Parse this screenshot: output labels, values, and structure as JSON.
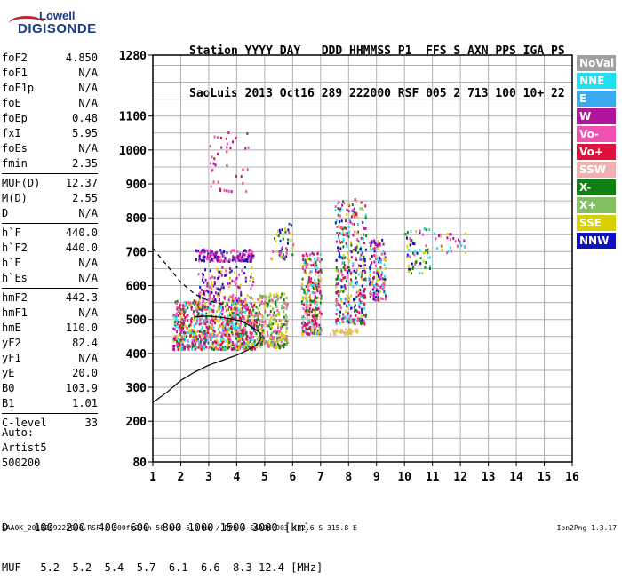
{
  "logo": {
    "line1": "Lowell",
    "line2": "DIGISONDE"
  },
  "header": {
    "row1": "Station YYYY DAY   DDD HHMMSS P1  FFS S AXN PPS IGA PS",
    "row2": "SaoLuis 2013 Oct16 289 222000 RSF 005 2 713 100 10+ 22"
  },
  "params": [
    [
      {
        "k": "foF2",
        "v": "4.850"
      },
      {
        "k": "foF1",
        "v": "N/A"
      },
      {
        "k": "foF1p",
        "v": "N/A"
      },
      {
        "k": "foE",
        "v": "N/A"
      },
      {
        "k": "foEp",
        "v": "0.48"
      },
      {
        "k": "fxI",
        "v": "5.95"
      },
      {
        "k": "foEs",
        "v": "N/A"
      },
      {
        "k": "fmin",
        "v": "2.35"
      }
    ],
    [
      {
        "k": "MUF(D)",
        "v": "12.37"
      },
      {
        "k": "M(D)",
        "v": "2.55"
      },
      {
        "k": "D",
        "v": "N/A"
      }
    ],
    [
      {
        "k": "h`F",
        "v": "440.0"
      },
      {
        "k": "h`F2",
        "v": "440.0"
      },
      {
        "k": "h`E",
        "v": "N/A"
      },
      {
        "k": "h`Es",
        "v": "N/A"
      }
    ],
    [
      {
        "k": "hmF2",
        "v": "442.3"
      },
      {
        "k": "hmF1",
        "v": "N/A"
      },
      {
        "k": "hmE",
        "v": "110.0"
      },
      {
        "k": "yF2",
        "v": "82.4"
      },
      {
        "k": "yF1",
        "v": "N/A"
      },
      {
        "k": "yE",
        "v": "20.0"
      },
      {
        "k": "B0",
        "v": "103.9"
      },
      {
        "k": "B1",
        "v": "1.01"
      }
    ],
    [
      {
        "k": "C-level",
        "v": "33"
      }
    ]
  ],
  "auto": {
    "line1": "Auto:",
    "line2": "Artist5",
    "line3": "500200"
  },
  "legend": [
    {
      "label": "NoVal",
      "color": "#a0a0a0"
    },
    {
      "label": "NNE",
      "color": "#1ee0f0"
    },
    {
      "label": "E",
      "color": "#3aa8f0"
    },
    {
      "label": "W",
      "color": "#b0149a"
    },
    {
      "label": "Vo-",
      "color": "#f050b0"
    },
    {
      "label": "Vo+",
      "color": "#e0103c"
    },
    {
      "label": "SSW",
      "color": "#f0b0b0"
    },
    {
      "label": "X-",
      "color": "#108010"
    },
    {
      "label": "X+",
      "color": "#80c060"
    },
    {
      "label": "SSE",
      "color": "#d8d000"
    },
    {
      "label": "NNW",
      "color": "#1010c0"
    }
  ],
  "bottom": {
    "row1": "D    100  200  400  600  800 1000 1500 3000 [km]",
    "row2": "MUF   5.2  5.2  5.4  5.7  6.1  6.6  8.3 12.4 [MHz]"
  },
  "footer": {
    "left": "SAA0K_2013289222000.RSF / 300fx256h 50 kHz 5.0 km / DPS-4 SAA0K 903 / 2.6 S 315.8 E",
    "right": "Ion2Png 1.3.17"
  },
  "chart_data": {
    "type": "scatter",
    "x_ticks": [
      1,
      2,
      3,
      4,
      5,
      6,
      7,
      8,
      9,
      10,
      11,
      12,
      13,
      14,
      15,
      16
    ],
    "y_ticks": [
      80,
      200,
      300,
      400,
      500,
      600,
      700,
      800,
      900,
      1000,
      1100,
      1280
    ],
    "xlim": [
      1,
      16
    ],
    "ylim": [
      80,
      1280
    ],
    "xlabel": "",
    "ylabel": "",
    "grid": true,
    "clusters": [
      {
        "xr": [
          1.7,
          4.7
        ],
        "yr": [
          415,
          560
        ],
        "n": 900,
        "colors": [
          "#f050b0",
          "#b0149a",
          "#e0103c",
          "#d8d000",
          "#108010",
          "#1ee0f0"
        ]
      },
      {
        "xr": [
          4.7,
          5.8
        ],
        "yr": [
          420,
          580
        ],
        "n": 260,
        "colors": [
          "#d8d000",
          "#108010",
          "#80c060",
          "#f050b0"
        ]
      },
      {
        "xr": [
          6.3,
          7.0
        ],
        "yr": [
          460,
          700
        ],
        "n": 300,
        "colors": [
          "#f050b0",
          "#e0103c",
          "#1ee0f0",
          "#d8d000",
          "#f0b0b0",
          "#108010",
          "#b0149a"
        ]
      },
      {
        "xr": [
          7.5,
          8.6
        ],
        "yr": [
          490,
          860
        ],
        "n": 360,
        "colors": [
          "#b0149a",
          "#1010c0",
          "#d8d000",
          "#f050b0",
          "#1ee0f0",
          "#e0103c",
          "#108010"
        ]
      },
      {
        "xr": [
          8.7,
          9.3
        ],
        "yr": [
          560,
          740
        ],
        "n": 160,
        "colors": [
          "#1010c0",
          "#f050b0",
          "#1ee0f0",
          "#d8d000",
          "#b0149a"
        ]
      },
      {
        "xr": [
          2.5,
          4.6
        ],
        "yr": [
          675,
          710
        ],
        "n": 160,
        "colors": [
          "#1010c0",
          "#b0149a",
          "#f050b0"
        ]
      },
      {
        "xr": [
          2.6,
          4.6
        ],
        "yr": [
          560,
          660
        ],
        "n": 140,
        "colors": [
          "#b0149a",
          "#f050b0",
          "#1010c0",
          "#d8d000"
        ]
      },
      {
        "xr": [
          5.2,
          6.0
        ],
        "yr": [
          680,
          790
        ],
        "n": 50,
        "colors": [
          "#1010c0",
          "#f050b0",
          "#d8d000",
          "#108010"
        ]
      },
      {
        "xr": [
          3.0,
          4.4
        ],
        "yr": [
          880,
          1060
        ],
        "n": 40,
        "colors": [
          "#b0149a",
          "#f050b0",
          "#e0103c"
        ]
      },
      {
        "xr": [
          10.0,
          10.9
        ],
        "yr": [
          640,
          780
        ],
        "n": 60,
        "colors": [
          "#d8d000",
          "#1ee0f0",
          "#108010",
          "#f050b0",
          "#1010c0"
        ]
      },
      {
        "xr": [
          11.0,
          12.4
        ],
        "yr": [
          700,
          760
        ],
        "n": 30,
        "colors": [
          "#d8d000",
          "#b0149a",
          "#1ee0f0",
          "#f050b0"
        ]
      },
      {
        "xr": [
          7.3,
          8.3
        ],
        "yr": [
          460,
          475
        ],
        "n": 40,
        "colors": [
          "#d8d000",
          "#f0b0b0"
        ]
      }
    ],
    "profile_solid": [
      [
        1.0,
        255
      ],
      [
        1.5,
        285
      ],
      [
        2.0,
        320
      ],
      [
        2.5,
        345
      ],
      [
        3.0,
        365
      ],
      [
        3.5,
        380
      ],
      [
        4.0,
        395
      ],
      [
        4.4,
        410
      ],
      [
        4.7,
        425
      ],
      [
        4.85,
        440
      ],
      [
        4.85,
        460
      ],
      [
        4.5,
        480
      ],
      [
        4.2,
        495
      ],
      [
        3.6,
        505
      ],
      [
        3.0,
        510
      ],
      [
        2.5,
        508
      ]
    ],
    "profile_dashed": [
      [
        1.0,
        710
      ],
      [
        1.5,
        660
      ],
      [
        2.0,
        610
      ],
      [
        2.5,
        575
      ],
      [
        3.0,
        555
      ],
      [
        3.5,
        545
      ]
    ]
  }
}
